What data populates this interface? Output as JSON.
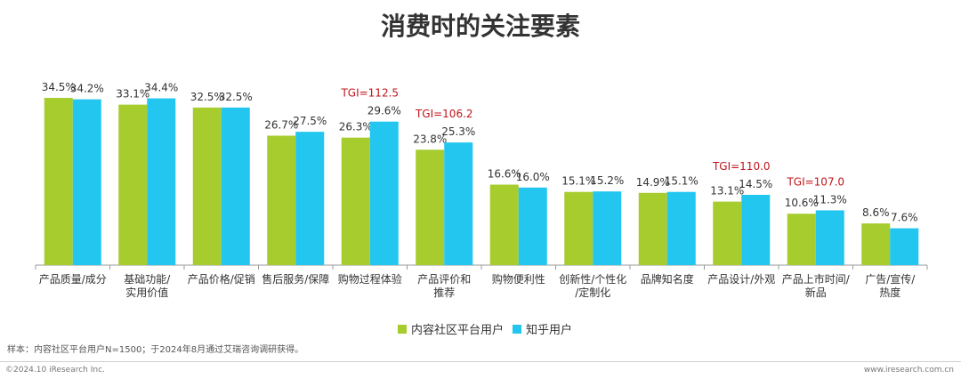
{
  "title": "消费时的关注要素",
  "legend": {
    "series1": "内容社区平台用户",
    "series2": "知乎用户"
  },
  "colors": {
    "series1": "#a6cc2e",
    "series2": "#22c6ef",
    "tgi": "#c0151b",
    "axis": "#999999",
    "label": "#333333"
  },
  "source": "样本：内容社区平台用户N=1500；于2024年8月通过艾瑞咨询调研获得。",
  "footer": {
    "left": "©2024.10 iResearch Inc.",
    "right": "www.iresearch.com.cn"
  },
  "chart_data": {
    "type": "bar",
    "categories": [
      [
        "产品质量/成分"
      ],
      [
        "基础功能/",
        "实用价值"
      ],
      [
        "产品价格/促销"
      ],
      [
        "售后服务/保障"
      ],
      [
        "购物过程体验"
      ],
      [
        "产品评价和",
        "推荐"
      ],
      [
        "购物便利性"
      ],
      [
        "创新性/个性化",
        "/定制化"
      ],
      [
        "品牌知名度"
      ],
      [
        "产品设计/外观"
      ],
      [
        "产品上市时间/",
        "新品"
      ],
      [
        "广告/宣传/",
        "热度"
      ]
    ],
    "series": [
      {
        "name": "内容社区平台用户",
        "values": [
          34.5,
          33.1,
          32.5,
          26.7,
          26.3,
          23.8,
          16.6,
          15.1,
          14.9,
          13.1,
          10.6,
          8.6
        ],
        "labels": [
          "34.5%",
          "33.1%",
          "32.5%",
          "26.7%",
          "26.3%",
          "23.8%",
          "16.6%",
          "15.1%",
          "14.9%",
          "13.1%",
          "10.6%",
          "8.6%"
        ]
      },
      {
        "name": "知乎用户",
        "values": [
          34.2,
          34.4,
          32.5,
          27.5,
          29.6,
          25.3,
          16.0,
          15.2,
          15.1,
          14.5,
          11.3,
          7.6
        ],
        "labels": [
          "34.2%",
          "34.4%",
          "32.5%",
          "27.5%",
          "29.6%",
          "25.3%",
          "16.0%",
          "15.2%",
          "15.1%",
          "14.5%",
          "11.3%",
          "7.6%"
        ]
      }
    ],
    "tgi": [
      {
        "category_index": 4,
        "text": "TGI=112.5"
      },
      {
        "category_index": 5,
        "text": "TGI=106.2"
      },
      {
        "category_index": 9,
        "text": "TGI=110.0"
      },
      {
        "category_index": 10,
        "text": "TGI=107.0"
      }
    ],
    "ylim": [
      0,
      40
    ],
    "grid": false,
    "legend_position": "bottom"
  }
}
